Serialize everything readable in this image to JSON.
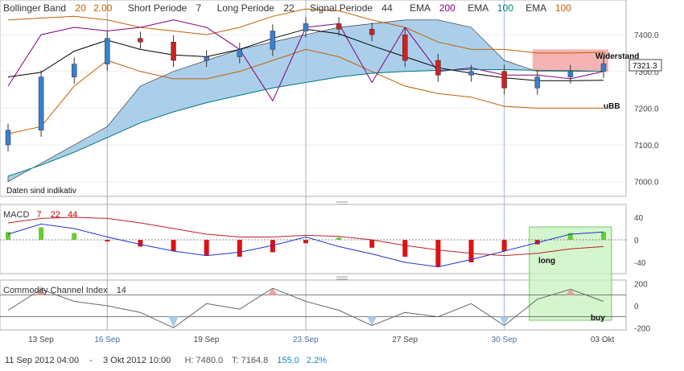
{
  "header": {
    "items": [
      {
        "label": "Bollinger Band",
        "params": [
          "20",
          "2.00"
        ],
        "colors": [
          "#c06000",
          "#c06000"
        ]
      },
      {
        "label": "Short Periode",
        "params": [
          "7"
        ],
        "colors": [
          "#333333"
        ]
      },
      {
        "label": "Long Periode",
        "params": [
          "22"
        ],
        "colors": [
          "#333333"
        ]
      },
      {
        "label": "Signal Periode",
        "params": [
          "44"
        ],
        "colors": [
          "#333333"
        ]
      },
      {
        "label": "EMA",
        "params": [
          "200"
        ],
        "colors": [
          "#800080"
        ]
      },
      {
        "label": "EMA",
        "params": [
          "100"
        ],
        "colors": [
          "#008080"
        ]
      },
      {
        "label": "EMA",
        "params": [
          "100"
        ],
        "colors": [
          "#c06000"
        ]
      }
    ]
  },
  "main_panel": {
    "y_ticks": [
      "7400.0",
      "7300.0",
      "7200.0",
      "7100.0",
      "7000.0"
    ],
    "y_tick_values": [
      7400,
      7300,
      7200,
      7100,
      7000
    ],
    "ylim": [
      6960,
      7490
    ],
    "price_badge": "7321.3",
    "annotations": {
      "resistance": "Widerstand",
      "lower_bb": "uBB"
    },
    "note": "Daten sind indikativ"
  },
  "macd_panel": {
    "label": "MACD",
    "params": [
      "7",
      "22",
      "44"
    ],
    "param_colors": [
      "#cc0000",
      "#cc0000",
      "#cc0000"
    ],
    "y_ticks": [
      "40",
      "0",
      "-40"
    ],
    "y_tick_values": [
      40,
      0,
      -40
    ],
    "ylim": [
      -60,
      60
    ],
    "annotation": "long"
  },
  "cci_panel": {
    "label": "Commodity Channel Index",
    "param": "14",
    "y_ticks": [
      "200",
      "0",
      "-200"
    ],
    "y_tick_values": [
      200,
      0,
      -200
    ],
    "ylim": [
      -220,
      220
    ],
    "annotation": "buy"
  },
  "x_axis": {
    "labels": [
      {
        "text": "13 Sep",
        "highlight": false
      },
      {
        "text": "16 Sep",
        "highlight": true
      },
      {
        "text": "19 Sep",
        "highlight": false
      },
      {
        "text": "23 Sep",
        "highlight": true
      },
      {
        "text": "27 Sep",
        "highlight": false
      },
      {
        "text": "30 Sep",
        "highlight": true
      },
      {
        "text": "03 Okt",
        "highlight": false
      }
    ]
  },
  "footer": {
    "range_start": "11 Sep 2012 04:00",
    "separator": "-",
    "range_end": "3 Okt 2012 10:00",
    "high": "H: 7480.0",
    "low": "T: 7164.8",
    "change_abs": "155.0",
    "change_pct": "2.2%"
  },
  "colors": {
    "up_candle": "#3a7fd0",
    "down_candle": "#cc2222",
    "bb_band": "#c06000",
    "ema200": "#800080",
    "ema100": "#008080",
    "short_line": "#000000",
    "cloud": "#8fbfe3",
    "resistance_zone": "#f08080",
    "macd_pos": "#66cc33",
    "macd_neg": "#dd1111",
    "macd_line": "#2233cc",
    "signal_line": "#bb2222",
    "cci_line": "#666666",
    "cci_over": "#e8a0a0",
    "cci_under": "#a8cdea",
    "highlight_box": "#c9f2c0"
  },
  "chart_data": [
    {
      "type": "candlestick",
      "title": "",
      "x": [
        "12 Sep",
        "13 Sep",
        "14 Sep",
        "16 Sep",
        "17 Sep",
        "18 Sep",
        "19 Sep",
        "20 Sep",
        "21 Sep",
        "23 Sep",
        "24 Sep",
        "25 Sep",
        "26 Sep",
        "27 Sep",
        "28 Sep",
        "30 Sep",
        "01 Okt",
        "02 Okt",
        "03 Okt"
      ],
      "close": [
        7140,
        7285,
        7320,
        7390,
        7380,
        7330,
        7340,
        7360,
        7410,
        7430,
        7415,
        7400,
        7330,
        7290,
        7300,
        7255,
        7285,
        7300,
        7321.3
      ],
      "series": [
        {
          "name": "Bollinger Band 20 2.00",
          "values": [
            7440,
            7445,
            7450,
            7440,
            7420,
            7410,
            7400,
            7420,
            7450,
            7470,
            7465,
            7440,
            7420,
            7380,
            7360,
            7360,
            7350,
            7350,
            7352
          ]
        },
        {
          "name": "Bollinger Band 20 2.00",
          "values": [
            7130,
            7150,
            7260,
            7330,
            7300,
            7280,
            7280,
            7300,
            7330,
            7360,
            7340,
            7300,
            7260,
            7240,
            7230,
            7205,
            7200,
            7200,
            7200
          ]
        },
        {
          "name": "EMA 200",
          "values": [
            7260,
            7400,
            7420,
            7410,
            7420,
            7440,
            7420,
            7360,
            7220,
            7420,
            7430,
            7270,
            7420,
            7300,
            7310,
            7290,
            7290,
            7280,
            7300
          ]
        },
        {
          "name": "EMA 100",
          "values": [
            7015,
            7045,
            7080,
            7120,
            7160,
            7190,
            7215,
            7235,
            7255,
            7270,
            7285,
            7295,
            7300,
            7303,
            7305,
            7305,
            7303,
            7302,
            7300
          ]
        }
      ],
      "ylim": [
        6960,
        7490
      ]
    },
    {
      "type": "bar",
      "title": "MACD 7 22 44",
      "x": [
        "12 Sep",
        "13 Sep",
        "14 Sep",
        "16 Sep",
        "17 Sep",
        "18 Sep",
        "19 Sep",
        "20 Sep",
        "21 Sep",
        "23 Sep",
        "24 Sep",
        "25 Sep",
        "26 Sep",
        "27 Sep",
        "28 Sep",
        "30 Sep",
        "01 Okt",
        "02 Okt",
        "03 Okt"
      ],
      "series": [
        {
          "name": "MACD",
          "values": [
            10,
            28,
            20,
            5,
            -8,
            -20,
            -28,
            -22,
            -10,
            5,
            -12,
            -25,
            -40,
            -48,
            -35,
            -20,
            -5,
            10,
            14
          ]
        },
        {
          "name": "Signal",
          "values": [
            30,
            38,
            40,
            38,
            30,
            20,
            10,
            5,
            5,
            8,
            6,
            0,
            -10,
            -18,
            -24,
            -28,
            -24,
            -16,
            -12
          ]
        },
        {
          "name": "Histogram",
          "values": [
            14,
            22,
            12,
            -3,
            -12,
            -20,
            -28,
            -30,
            -22,
            -6,
            4,
            -14,
            -30,
            -48,
            -40,
            -20,
            -8,
            12,
            14
          ]
        }
      ],
      "ylim": [
        -60,
        60
      ]
    },
    {
      "type": "line",
      "title": "Commodity Channel Index 14",
      "x": [
        "12 Sep",
        "13 Sep",
        "14 Sep",
        "16 Sep",
        "17 Sep",
        "18 Sep",
        "19 Sep",
        "20 Sep",
        "21 Sep",
        "23 Sep",
        "24 Sep",
        "25 Sep",
        "26 Sep",
        "27 Sep",
        "28 Sep",
        "30 Sep",
        "01 Okt",
        "02 Okt",
        "03 Okt"
      ],
      "values": [
        -40,
        150,
        40,
        0,
        -60,
        -200,
        20,
        -30,
        160,
        40,
        -40,
        -180,
        -60,
        -100,
        20,
        -180,
        60,
        150,
        40
      ],
      "ylim": [
        -220,
        220
      ]
    }
  ]
}
